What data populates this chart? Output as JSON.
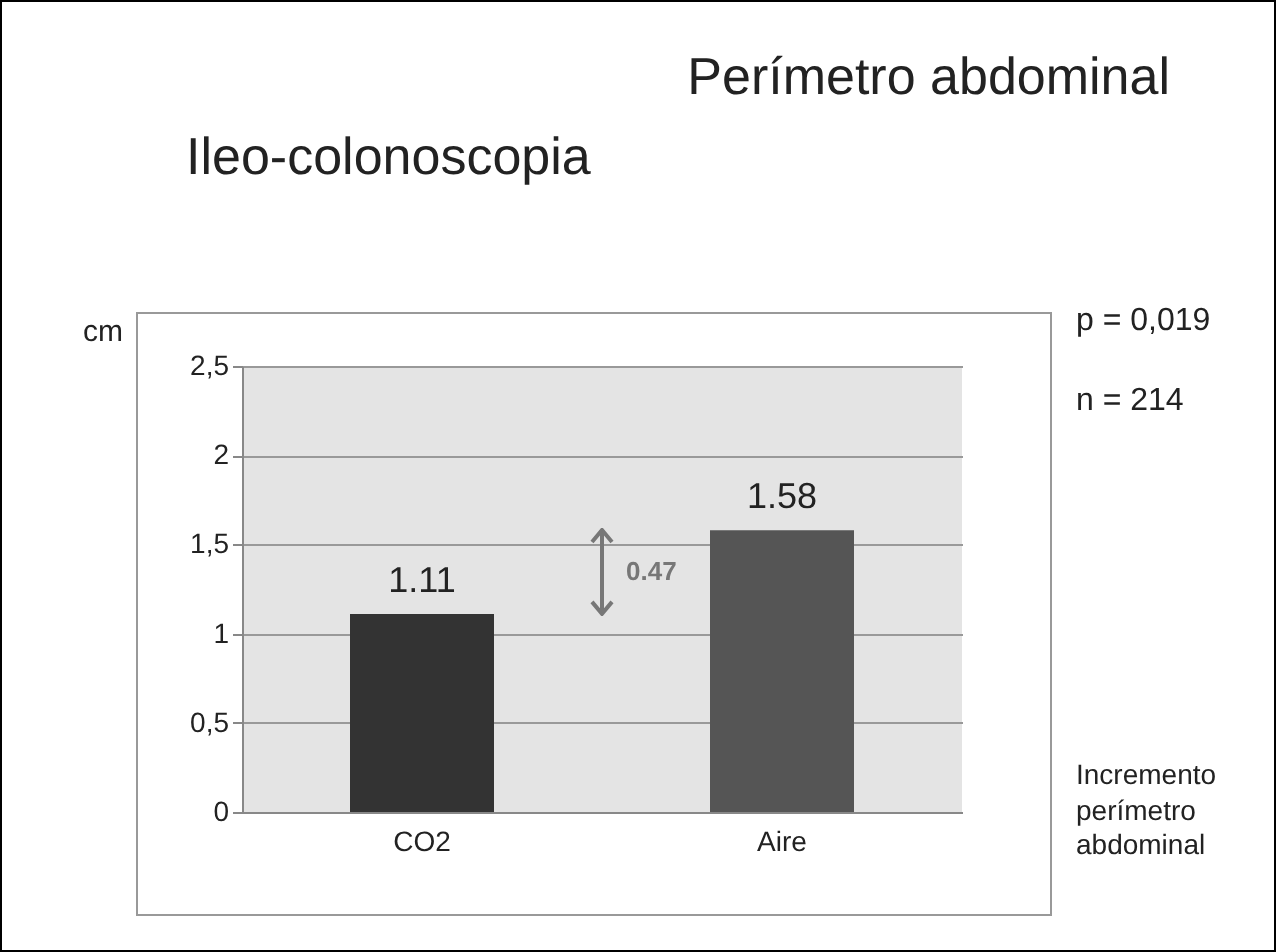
{
  "chart_data": {
    "type": "bar",
    "title": "Perímetro abdominal",
    "subtitle": "Ileo-colonoscopia",
    "ylabel": "cm",
    "categories": [
      "CO2",
      "Aire"
    ],
    "values": [
      1.11,
      1.58
    ],
    "colors": [
      "#333333",
      "#555555"
    ],
    "ylim": [
      0,
      2.5
    ],
    "yticks": [
      0,
      {
        "value": 0.5,
        "label": "0,5"
      },
      1,
      {
        "value": 1.5,
        "label": "1,5"
      },
      2,
      {
        "value": 2.5,
        "label": "2,5"
      }
    ],
    "grid": "y",
    "data_labels": true,
    "annotations": [
      "p = 0,019",
      "n = 214",
      "Incremento perímetro abdominal",
      "0.47"
    ]
  }
}
